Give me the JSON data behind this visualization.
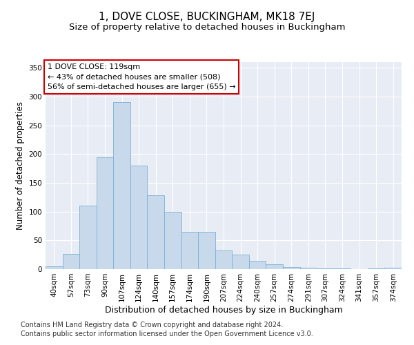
{
  "title1": "1, DOVE CLOSE, BUCKINGHAM, MK18 7EJ",
  "title2": "Size of property relative to detached houses in Buckingham",
  "xlabel": "Distribution of detached houses by size in Buckingham",
  "ylabel": "Number of detached properties",
  "categories": [
    "40sqm",
    "57sqm",
    "73sqm",
    "90sqm",
    "107sqm",
    "124sqm",
    "140sqm",
    "157sqm",
    "174sqm",
    "190sqm",
    "207sqm",
    "224sqm",
    "240sqm",
    "257sqm",
    "274sqm",
    "291sqm",
    "307sqm",
    "324sqm",
    "341sqm",
    "357sqm",
    "374sqm"
  ],
  "values": [
    5,
    27,
    110,
    195,
    290,
    180,
    128,
    100,
    65,
    65,
    33,
    25,
    15,
    8,
    4,
    2,
    1,
    1,
    0,
    1,
    2
  ],
  "bar_color": "#c9d9ec",
  "bar_edge_color": "#7bafd4",
  "ylim": [
    0,
    360
  ],
  "yticks": [
    0,
    50,
    100,
    150,
    200,
    250,
    300,
    350
  ],
  "background_color": "#ffffff",
  "plot_bg_color": "#e8edf5",
  "grid_color": "#ffffff",
  "annotation_text": "1 DOVE CLOSE: 119sqm\n← 43% of detached houses are smaller (508)\n56% of semi-detached houses are larger (655) →",
  "annotation_box_color": "white",
  "annotation_box_edge": "#cc0000",
  "footer1": "Contains HM Land Registry data © Crown copyright and database right 2024.",
  "footer2": "Contains public sector information licensed under the Open Government Licence v3.0.",
  "title1_fontsize": 11,
  "title2_fontsize": 9.5,
  "xlabel_fontsize": 9,
  "ylabel_fontsize": 8.5,
  "tick_fontsize": 7.5,
  "annotation_fontsize": 8,
  "footer_fontsize": 7
}
